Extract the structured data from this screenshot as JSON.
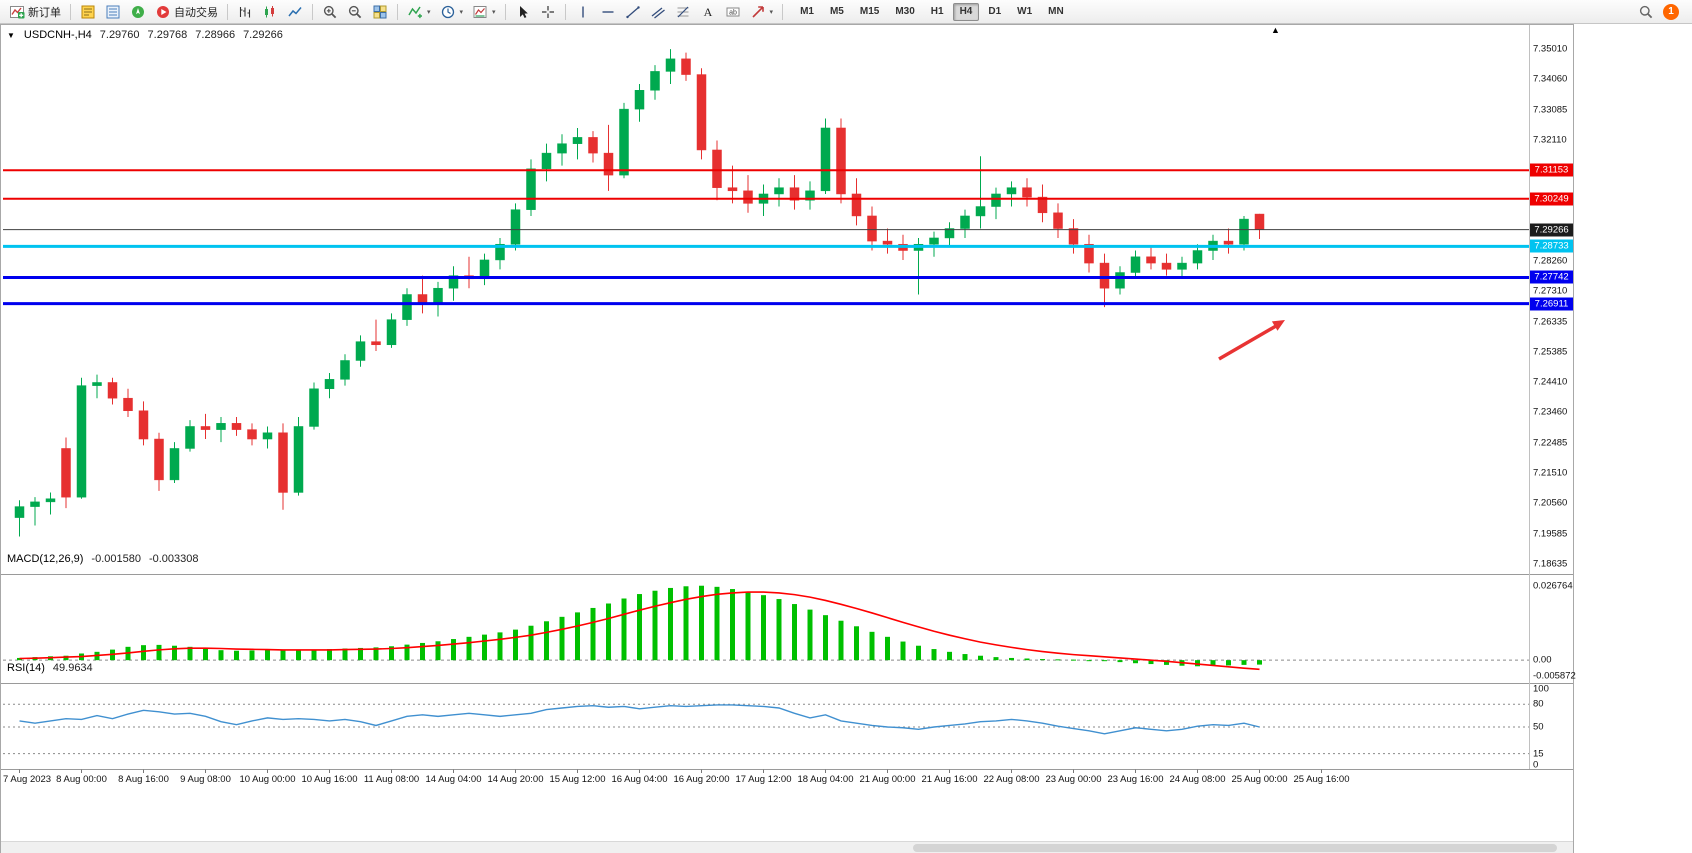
{
  "colors": {
    "up": "#00a94f",
    "down": "#e63030",
    "macd_hist": "#00c000",
    "macd_signal": "#ff0000",
    "rsi_line": "#4090d0",
    "arrow": "#e83333",
    "badge": "#ff6600"
  },
  "toolbar": {
    "new_order_label": "新订单",
    "auto_trading_label": "自动交易",
    "timeframes": [
      "M1",
      "M5",
      "M15",
      "M30",
      "H1",
      "H4",
      "D1",
      "W1",
      "MN"
    ],
    "active_timeframe": "H4",
    "notification_count": "1"
  },
  "chart_data": [
    {
      "type": "candlestick",
      "symbol": "USDCNH-,H4",
      "open": "7.29760",
      "high": "7.29768",
      "low": "7.28966",
      "close": "7.29266",
      "ylim": [
        7.184,
        7.3565
      ],
      "y_ticks": [
        "7.35010",
        "7.34060",
        "7.33085",
        "7.32110",
        "7.31160",
        "7.30185",
        "7.29235",
        "7.28260",
        "7.27310",
        "7.26335",
        "7.25385",
        "7.24410",
        "7.23460",
        "7.22485",
        "7.21510",
        "7.20560",
        "7.19585",
        "7.18635"
      ],
      "x_labels": [
        "7 Aug 2023",
        "8 Aug 00:00",
        "8 Aug 16:00",
        "9 Aug 08:00",
        "10 Aug 00:00",
        "10 Aug 16:00",
        "11 Aug 08:00",
        "14 Aug 04:00",
        "14 Aug 20:00",
        "15 Aug 12:00",
        "16 Aug 04:00",
        "16 Aug 20:00",
        "17 Aug 12:00",
        "18 Aug 04:00",
        "21 Aug 00:00",
        "21 Aug 16:00",
        "22 Aug 08:00",
        "23 Aug 00:00",
        "23 Aug 16:00",
        "24 Aug 08:00",
        "25 Aug 00:00",
        "25 Aug 16:00"
      ],
      "bars_per_x_label": 4,
      "hlines": [
        {
          "label": "7.31153",
          "price": 7.31153,
          "color": "#ee0000",
          "width": 2
        },
        {
          "label": "7.30249",
          "price": 7.30249,
          "color": "#ee0000",
          "width": 2
        },
        {
          "label": "7.29266",
          "price": 7.29266,
          "color": "#404040",
          "width": 1,
          "tag_bg": "#1c1c1c",
          "role": "current-price"
        },
        {
          "label": "7.28733",
          "price": 7.28733,
          "color": "#00c3f0",
          "width": 3
        },
        {
          "label": "7.27742",
          "price": 7.27742,
          "color": "#0000ee",
          "width": 3
        },
        {
          "label": "7.26911",
          "price": 7.26911,
          "color": "#0000ee",
          "width": 3
        }
      ],
      "candles": [
        [
          7.201,
          7.2065,
          7.195,
          7.2045
        ],
        [
          7.2045,
          7.2075,
          7.1985,
          7.206
        ],
        [
          7.206,
          7.209,
          7.202,
          7.207
        ],
        [
          7.223,
          7.2265,
          7.204,
          7.2075
        ],
        [
          7.2075,
          7.2455,
          7.207,
          7.243
        ],
        [
          7.243,
          7.2465,
          7.239,
          7.244
        ],
        [
          7.244,
          7.2455,
          7.237,
          7.239
        ],
        [
          7.239,
          7.242,
          7.233,
          7.235
        ],
        [
          7.235,
          7.238,
          7.224,
          7.226
        ],
        [
          7.226,
          7.228,
          7.2095,
          7.213
        ],
        [
          7.213,
          7.225,
          7.212,
          7.223
        ],
        [
          7.223,
          7.232,
          7.222,
          7.23
        ],
        [
          7.23,
          7.234,
          7.226,
          7.229
        ],
        [
          7.229,
          7.233,
          7.225,
          7.231
        ],
        [
          7.231,
          7.233,
          7.227,
          7.229
        ],
        [
          7.229,
          7.231,
          7.224,
          7.226
        ],
        [
          7.226,
          7.23,
          7.223,
          7.228
        ],
        [
          7.228,
          7.231,
          7.2035,
          7.209
        ],
        [
          7.209,
          7.233,
          7.208,
          7.23
        ],
        [
          7.23,
          7.244,
          7.229,
          7.242
        ],
        [
          7.242,
          7.247,
          7.239,
          7.245
        ],
        [
          7.245,
          7.253,
          7.243,
          7.251
        ],
        [
          7.251,
          7.259,
          7.249,
          7.257
        ],
        [
          7.257,
          7.264,
          7.254,
          7.256
        ],
        [
          7.256,
          7.266,
          7.255,
          7.264
        ],
        [
          7.264,
          7.274,
          7.262,
          7.272
        ],
        [
          7.272,
          7.278,
          7.266,
          7.269
        ],
        [
          7.269,
          7.276,
          7.265,
          7.274
        ],
        [
          7.274,
          7.281,
          7.27,
          7.278
        ],
        [
          7.278,
          7.284,
          7.274,
          7.277
        ],
        [
          7.277,
          7.285,
          7.275,
          7.283
        ],
        [
          7.283,
          7.29,
          7.28,
          7.288
        ],
        [
          7.288,
          7.301,
          7.286,
          7.299
        ],
        [
          7.299,
          7.315,
          7.297,
          7.312
        ],
        [
          7.312,
          7.32,
          7.308,
          7.317
        ],
        [
          7.317,
          7.323,
          7.313,
          7.32
        ],
        [
          7.32,
          7.325,
          7.315,
          7.322
        ],
        [
          7.322,
          7.324,
          7.314,
          7.317
        ],
        [
          7.317,
          7.326,
          7.305,
          7.31
        ],
        [
          7.31,
          7.333,
          7.309,
          7.331
        ],
        [
          7.331,
          7.339,
          7.327,
          7.337
        ],
        [
          7.337,
          7.345,
          7.334,
          7.343
        ],
        [
          7.343,
          7.3501,
          7.339,
          7.347
        ],
        [
          7.347,
          7.349,
          7.34,
          7.342
        ],
        [
          7.342,
          7.344,
          7.315,
          7.318
        ],
        [
          7.318,
          7.321,
          7.302,
          7.306
        ],
        [
          7.306,
          7.313,
          7.301,
          7.305
        ],
        [
          7.305,
          7.31,
          7.298,
          7.301
        ],
        [
          7.301,
          7.307,
          7.297,
          7.304
        ],
        [
          7.304,
          7.309,
          7.3,
          7.306
        ],
        [
          7.306,
          7.31,
          7.299,
          7.302
        ],
        [
          7.302,
          7.308,
          7.299,
          7.305
        ],
        [
          7.305,
          7.328,
          7.304,
          7.325
        ],
        [
          7.325,
          7.328,
          7.301,
          7.304
        ],
        [
          7.304,
          7.309,
          7.294,
          7.297
        ],
        [
          7.297,
          7.3,
          7.286,
          7.289
        ],
        [
          7.289,
          7.293,
          7.285,
          7.288
        ],
        [
          7.288,
          7.291,
          7.283,
          7.286
        ],
        [
          7.286,
          7.29,
          7.272,
          7.288
        ],
        [
          7.288,
          7.292,
          7.284,
          7.29
        ],
        [
          7.29,
          7.295,
          7.287,
          7.293
        ],
        [
          7.293,
          7.299,
          7.29,
          7.297
        ],
        [
          7.297,
          7.316,
          7.293,
          7.3
        ],
        [
          7.3,
          7.306,
          7.296,
          7.304
        ],
        [
          7.304,
          7.308,
          7.3,
          7.306
        ],
        [
          7.306,
          7.309,
          7.3,
          7.303
        ],
        [
          7.303,
          7.307,
          7.295,
          7.298
        ],
        [
          7.298,
          7.301,
          7.29,
          7.293
        ],
        [
          7.293,
          7.296,
          7.285,
          7.288
        ],
        [
          7.288,
          7.291,
          7.279,
          7.282
        ],
        [
          7.282,
          7.285,
          7.268,
          7.274
        ],
        [
          7.274,
          7.281,
          7.272,
          7.279
        ],
        [
          7.279,
          7.286,
          7.277,
          7.284
        ],
        [
          7.284,
          7.287,
          7.28,
          7.282
        ],
        [
          7.282,
          7.285,
          7.278,
          7.28
        ],
        [
          7.28,
          7.284,
          7.277,
          7.282
        ],
        [
          7.282,
          7.288,
          7.28,
          7.286
        ],
        [
          7.286,
          7.291,
          7.283,
          7.289
        ],
        [
          7.289,
          7.293,
          7.285,
          7.288
        ],
        [
          7.288,
          7.297,
          7.286,
          7.296
        ],
        [
          7.2976,
          7.29768,
          7.28966,
          7.29266
        ]
      ]
    },
    {
      "type": "macd",
      "label": "MACD(12,26,9)",
      "value_macd": "-0.001580",
      "value_signal": "-0.003308",
      "y_ticks": [
        "0.026764",
        "0.00",
        "-0.005872"
      ],
      "ylim": [
        -0.0075,
        0.0285
      ],
      "histogram": [
        0.0008,
        0.0011,
        0.0014,
        0.0016,
        0.0024,
        0.003,
        0.0038,
        0.0048,
        0.0054,
        0.0055,
        0.0052,
        0.0048,
        0.0042,
        0.0036,
        0.0034,
        0.0035,
        0.0037,
        0.0035,
        0.0036,
        0.0038,
        0.004,
        0.0042,
        0.0044,
        0.0046,
        0.005,
        0.0056,
        0.0062,
        0.0068,
        0.0076,
        0.0084,
        0.0092,
        0.01,
        0.011,
        0.0124,
        0.014,
        0.0156,
        0.0172,
        0.0188,
        0.0204,
        0.0222,
        0.0238,
        0.025,
        0.026,
        0.0266,
        0.0268,
        0.0264,
        0.0256,
        0.0246,
        0.0234,
        0.022,
        0.0202,
        0.0182,
        0.0162,
        0.0142,
        0.0122,
        0.0102,
        0.0084,
        0.0067,
        0.0052,
        0.004,
        0.003,
        0.0022,
        0.0016,
        0.0011,
        0.0008,
        0.0006,
        0.0004,
        0.0003,
        0.0002,
        0.0,
        -0.0003,
        -0.0007,
        -0.0011,
        -0.0014,
        -0.0017,
        -0.002,
        -0.0022,
        -0.0021,
        -0.0019,
        -0.0017,
        -0.0016
      ],
      "signal": [
        0.0006,
        0.0007,
        0.0009,
        0.0011,
        0.0013,
        0.0017,
        0.0021,
        0.0026,
        0.0032,
        0.0037,
        0.0041,
        0.0043,
        0.0043,
        0.0042,
        0.004,
        0.0039,
        0.0038,
        0.0037,
        0.0037,
        0.0037,
        0.0037,
        0.0038,
        0.0039,
        0.004,
        0.0042,
        0.0045,
        0.0049,
        0.0053,
        0.0058,
        0.0063,
        0.0069,
        0.0075,
        0.0082,
        0.009,
        0.01,
        0.0111,
        0.0123,
        0.0136,
        0.015,
        0.0165,
        0.018,
        0.0194,
        0.0207,
        0.0219,
        0.0229,
        0.0237,
        0.0242,
        0.0245,
        0.0245,
        0.0242,
        0.0236,
        0.0227,
        0.0215,
        0.0201,
        0.0186,
        0.017,
        0.0153,
        0.0136,
        0.012,
        0.0104,
        0.009,
        0.0077,
        0.0065,
        0.0055,
        0.0046,
        0.0038,
        0.0031,
        0.0025,
        0.002,
        0.0016,
        0.0012,
        0.0008,
        0.0004,
        0.0,
        -0.0004,
        -0.0009,
        -0.0014,
        -0.0019,
        -0.0024,
        -0.0029,
        -0.0033
      ]
    },
    {
      "type": "rsi",
      "label": "RSI(14)",
      "value": "49.9634",
      "levels": [
        80,
        50,
        15
      ],
      "y_ticks": [
        "100",
        "80",
        "50",
        "15",
        "0"
      ],
      "ylim": [
        0,
        100
      ],
      "values": [
        58,
        55,
        58,
        61,
        60,
        65,
        61,
        67,
        72,
        70,
        67,
        68,
        64,
        57,
        53,
        58,
        62,
        60,
        61,
        60,
        58,
        60,
        57,
        52,
        58,
        64,
        66,
        64,
        66,
        68,
        66,
        64,
        66,
        68,
        73,
        75,
        77,
        78,
        76,
        77,
        74,
        76,
        78,
        77,
        78,
        79,
        79,
        78,
        77,
        75,
        68,
        62,
        66,
        58,
        55,
        52,
        50,
        49,
        47,
        50,
        52,
        54,
        57,
        58,
        60,
        58,
        55,
        51,
        48,
        45,
        41,
        45,
        49,
        47,
        45,
        47,
        51,
        53,
        52,
        55,
        50
      ]
    }
  ]
}
